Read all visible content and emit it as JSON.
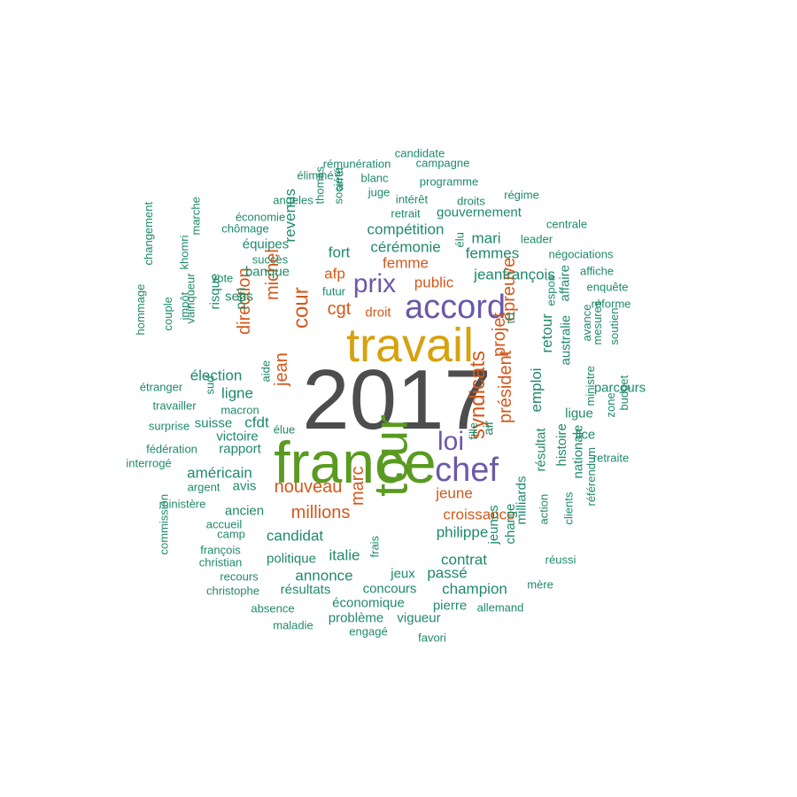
{
  "colors": {
    "gray": "#4d4d4d",
    "yellow": "#d6a20e",
    "green": "#5a9a21",
    "purple": "#6a5aa8",
    "orange": "#d4581b",
    "teal": "#1f8a6a"
  },
  "words": [
    "2017",
    "travail",
    "france",
    "tour",
    "accord",
    "prix",
    "chef",
    "loi",
    "syndicats",
    "président",
    "épreuve",
    "projet",
    "cour",
    "michel",
    "jean",
    "direction",
    "nouveau",
    "millions",
    "marc",
    "croissance",
    "jeune",
    "cgt",
    "afp",
    "femme",
    "public",
    "droit",
    "fort",
    "revenus",
    "cérémonie",
    "compétition",
    "gouvernement",
    "retrait",
    "intérêt",
    "droits",
    "régime",
    "programme",
    "blanc",
    "juge",
    "société",
    "arrêt",
    "thomas",
    "angeles",
    "rémunération",
    "éliminé",
    "candidate",
    "campagne",
    "économie",
    "chômage",
    "équipes",
    "succès",
    "banque",
    "marche",
    "khomri",
    "changement",
    "vote",
    "sens",
    "risque",
    "pen",
    "vainqueur",
    "impôt",
    "couple",
    "hommage",
    "étranger",
    "travailler",
    "surprise",
    "fédération",
    "interrogé",
    "élection",
    "ligne",
    "sud",
    "aide",
    "macron",
    "suisse",
    "cfdt",
    "victoire",
    "élue",
    "rapport",
    "américain",
    "argent",
    "avis",
    "ministère",
    "ancien",
    "accueil",
    "camp",
    "françois",
    "christian",
    "commission",
    "recours",
    "christophe",
    "absence",
    "maladie",
    "candidat",
    "politique",
    "italie",
    "annonce",
    "résultats",
    "concours",
    "économique",
    "problème",
    "engagé",
    "vigueur",
    "favori",
    "pierre",
    "allemand",
    "champion",
    "passé",
    "jeux",
    "frais",
    "contrat",
    "philippe",
    "jeunes",
    "charge",
    "milliards",
    "action",
    "résultat",
    "emploi",
    "retour",
    "ligue",
    "lice",
    "histoire",
    "clients",
    "nationale",
    "référendum",
    "retraite",
    "mère",
    "réussi",
    "mari",
    "femmes",
    "jeanfrançois",
    "élu",
    "leader",
    "centrale",
    "négociations",
    "affiche",
    "enquête",
    "réforme",
    "espoir",
    "affaire",
    "australie",
    "avance",
    "mesures",
    "soutien",
    "parcours",
    "ministre",
    "zone",
    "budget",
    "air",
    "fille",
    "tf1",
    "futur"
  ]
}
